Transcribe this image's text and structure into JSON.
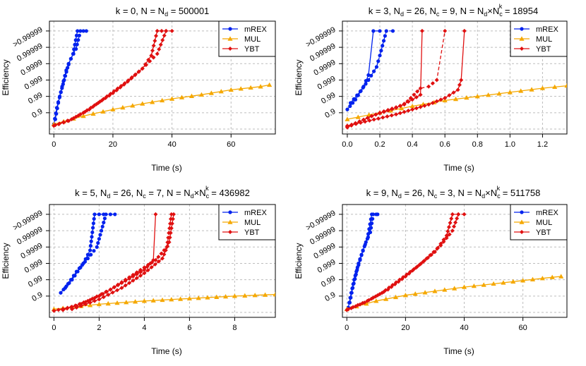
{
  "colors": {
    "mrex": "#0022ee",
    "mul": "#f5a800",
    "ybt": "#e01010",
    "grid": "#bdbdbd"
  },
  "chart_data": [
    {
      "type": "line",
      "title": {
        "parts": [
          "k = 0, N = N",
          "d",
          " = 500001"
        ]
      },
      "xlabel": "Time (s)",
      "ylabel": "Efficiency",
      "xlim": [
        -1.5,
        75
      ],
      "xticks": [
        0,
        20,
        40,
        60
      ],
      "xtick_labels": [
        "0",
        "20",
        "40",
        "60"
      ],
      "ylim": [
        -0.3,
        6.6
      ],
      "yticks": [
        1,
        2,
        3,
        4,
        5,
        6
      ],
      "ytick_labels": [
        "0.9",
        "0.99",
        "0.999",
        "0.9999",
        "0.99999",
        ">0.99999"
      ],
      "y_scale_note": "y position = number of nines in efficiency",
      "legend": [
        "mREX",
        "MUL",
        "YBT"
      ],
      "series": [
        {
          "name": "mREX",
          "lines": [
            [
              [
                0,
                0.3
              ],
              [
                1,
                1.3
              ],
              [
                2,
                2.0
              ],
              [
                3.5,
                3.0
              ],
              [
                5,
                4.0
              ],
              [
                6.5,
                4.6
              ],
              [
                8,
                6.0
              ],
              [
                10,
                6.0
              ]
            ],
            [
              [
                0.5,
                0.6
              ],
              [
                1.5,
                1.6
              ],
              [
                2.8,
                2.6
              ],
              [
                4.2,
                3.6
              ],
              [
                5.8,
                4.3
              ],
              [
                7.5,
                4.9
              ],
              [
                9,
                6.0
              ],
              [
                11,
                6.0
              ]
            ]
          ]
        },
        {
          "name": "MUL",
          "lines": [
            [
              [
                0,
                0.3
              ],
              [
                10,
                0.8
              ],
              [
                20,
                1.2
              ],
              [
                30,
                1.55
              ],
              [
                40,
                1.85
              ],
              [
                50,
                2.1
              ],
              [
                60,
                2.4
              ],
              [
                70,
                2.6
              ],
              [
                73,
                2.7
              ]
            ]
          ]
        },
        {
          "name": "YBT",
          "lines": [
            [
              [
                0,
                0.2
              ],
              [
                5,
                0.5
              ],
              [
                10,
                1.0
              ],
              [
                15,
                1.6
              ],
              [
                20,
                2.2
              ],
              [
                25,
                2.9
              ],
              [
                30,
                3.7
              ],
              [
                33,
                4.5
              ],
              [
                35,
                6.0
              ],
              [
                38,
                6.0
              ]
            ],
            [
              [
                0.5,
                0.25
              ],
              [
                6,
                0.6
              ],
              [
                12,
                1.2
              ],
              [
                18,
                2.0
              ],
              [
                24,
                2.8
              ],
              [
                30,
                3.7
              ],
              [
                35,
                4.6
              ],
              [
                38,
                6.0
              ],
              [
                40,
                6.0
              ]
            ]
          ]
        }
      ]
    },
    {
      "type": "line",
      "title": {
        "parts": [
          "k = 3, N",
          "d",
          " = 26, N",
          "c",
          " = 9, N = N",
          "d",
          "×N",
          "c",
          "k",
          " = 18954"
        ]
      },
      "xlabel": "Time (s)",
      "ylabel": "Efficiency",
      "xlim": [
        -0.03,
        1.35
      ],
      "xticks": [
        0,
        0.2,
        0.4,
        0.6,
        0.8,
        1.0,
        1.2
      ],
      "xtick_labels": [
        "0.0",
        "0.2",
        "0.4",
        "0.6",
        "0.8",
        "1.0",
        "1.2"
      ],
      "ylim": [
        -0.3,
        6.6
      ],
      "yticks": [
        1,
        2,
        3,
        4,
        5,
        6
      ],
      "ytick_labels": [
        "0.9",
        "0.99",
        "0.999",
        "0.9999",
        "0.99999",
        ">0.99999"
      ],
      "y_scale_note": "y position = number of nines in efficiency",
      "legend": [
        "mREX",
        "MUL",
        "YBT"
      ],
      "series": [
        {
          "name": "mREX",
          "lines": [
            [
              [
                0,
                1.2
              ],
              [
                0.05,
                1.8
              ],
              [
                0.1,
                2.6
              ],
              [
                0.13,
                3.3
              ],
              [
                0.16,
                6.0
              ],
              [
                0.2,
                6.0
              ]
            ],
            [
              [
                0.02,
                1.6
              ],
              [
                0.08,
                2.3
              ],
              [
                0.13,
                3.0
              ],
              [
                0.18,
                3.8
              ],
              [
                0.2,
                4.5
              ],
              [
                0.24,
                6.0
              ],
              [
                0.28,
                6.0
              ]
            ]
          ]
        },
        {
          "name": "MUL",
          "lines": [
            [
              [
                0,
                0.6
              ],
              [
                0.2,
                1.0
              ],
              [
                0.4,
                1.4
              ],
              [
                0.6,
                1.75
              ],
              [
                0.8,
                2.0
              ],
              [
                1.0,
                2.25
              ],
              [
                1.2,
                2.5
              ],
              [
                1.35,
                2.65
              ]
            ]
          ]
        },
        {
          "name": "YBT",
          "lines": [
            [
              [
                0,
                0.1
              ],
              [
                0.15,
                0.8
              ],
              [
                0.3,
                1.3
              ],
              [
                0.4,
                1.8
              ],
              [
                0.45,
                2.1
              ],
              [
                0.46,
                6.0
              ]
            ],
            [
              [
                0,
                0.15
              ],
              [
                0.2,
                1.0
              ],
              [
                0.35,
                1.5
              ],
              [
                0.45,
                2.5
              ],
              [
                0.5,
                2.6
              ],
              [
                0.55,
                3.0
              ],
              [
                0.6,
                6.0
              ]
            ],
            [
              [
                0,
                0.2
              ],
              [
                0.3,
                0.9
              ],
              [
                0.5,
                1.5
              ],
              [
                0.6,
                1.9
              ],
              [
                0.68,
                2.4
              ],
              [
                0.7,
                3.0
              ],
              [
                0.72,
                6.0
              ]
            ]
          ]
        }
      ]
    },
    {
      "type": "line",
      "title": {
        "parts": [
          "k = 5, N",
          "d",
          " = 26, N",
          "c",
          " = 7, N = N",
          "d",
          "×N",
          "c",
          "k",
          " = 436982"
        ]
      },
      "xlabel": "Time (s)",
      "ylabel": "Efficiency",
      "xlim": [
        -0.2,
        9.8
      ],
      "xticks": [
        0,
        2,
        4,
        6,
        8
      ],
      "xtick_labels": [
        "0",
        "2",
        "4",
        "6",
        "8"
      ],
      "ylim": [
        -0.3,
        6.6
      ],
      "yticks": [
        1,
        2,
        3,
        4,
        5,
        6
      ],
      "ytick_labels": [
        "0.9",
        "0.99",
        "0.999",
        "0.9999",
        "0.99999",
        ">0.99999"
      ],
      "y_scale_note": "y position = number of nines in efficiency",
      "legend": [
        "mREX",
        "MUL",
        "YBT"
      ],
      "series": [
        {
          "name": "mREX",
          "lines": [
            [
              [
                0.3,
                1.2
              ],
              [
                0.8,
                2.0
              ],
              [
                1.3,
                3.0
              ],
              [
                1.6,
                3.8
              ],
              [
                1.8,
                6.0
              ],
              [
                2.2,
                6.0
              ]
            ],
            [
              [
                0.5,
                1.5
              ],
              [
                1.0,
                2.5
              ],
              [
                1.5,
                3.3
              ],
              [
                1.9,
                4.0
              ],
              [
                2.3,
                6.0
              ],
              [
                2.7,
                6.0
              ]
            ]
          ]
        },
        {
          "name": "MUL",
          "lines": [
            [
              [
                0,
                0.2
              ],
              [
                2,
                0.5
              ],
              [
                4,
                0.7
              ],
              [
                6,
                0.85
              ],
              [
                8,
                1.0
              ],
              [
                9.8,
                1.1
              ]
            ]
          ]
        },
        {
          "name": "YBT",
          "lines": [
            [
              [
                0,
                0.1
              ],
              [
                1,
                0.4
              ],
              [
                2,
                1.0
              ],
              [
                3,
                1.8
              ],
              [
                4,
                2.6
              ],
              [
                4.4,
                3.2
              ],
              [
                4.5,
                6.0
              ]
            ],
            [
              [
                0.4,
                0.15
              ],
              [
                1.5,
                0.7
              ],
              [
                2.5,
                1.4
              ],
              [
                3.5,
                2.3
              ],
              [
                4.5,
                3.2
              ],
              [
                5,
                4.0
              ],
              [
                5.2,
                6.0
              ]
            ],
            [
              [
                0.8,
                0.2
              ],
              [
                2,
                0.8
              ],
              [
                3,
                1.5
              ],
              [
                4,
                2.4
              ],
              [
                4.8,
                3.3
              ],
              [
                5.1,
                4.3
              ],
              [
                5.3,
                6.0
              ]
            ]
          ]
        }
      ]
    },
    {
      "type": "line",
      "title": {
        "parts": [
          "k = 9, N",
          "d",
          " = 26, N",
          "c",
          " = 3, N = N",
          "d",
          "×N",
          "c",
          "k",
          " = 511758"
        ]
      },
      "xlabel": "Time (s)",
      "ylabel": "Efficiency",
      "xlim": [
        -1.5,
        75
      ],
      "xticks": [
        0,
        20,
        40,
        60
      ],
      "xtick_labels": [
        "0",
        "20",
        "40",
        "60"
      ],
      "ylim": [
        -0.3,
        6.6
      ],
      "yticks": [
        1,
        2,
        3,
        4,
        5,
        6
      ],
      "ytick_labels": [
        "0.9",
        "0.99",
        "0.999",
        "0.9999",
        "0.99999",
        ">0.99999"
      ],
      "y_scale_note": "y position = number of nines in efficiency",
      "legend": [
        "mREX",
        "MUL",
        "YBT"
      ],
      "series": [
        {
          "name": "mREX",
          "lines": [
            [
              [
                0.5,
                0.3
              ],
              [
                1.5,
                1.2
              ],
              [
                2.5,
                2.0
              ],
              [
                4,
                3.0
              ],
              [
                5.5,
                3.8
              ],
              [
                7,
                4.5
              ],
              [
                8.5,
                6.0
              ],
              [
                10,
                6.0
              ]
            ],
            [
              [
                1,
                0.6
              ],
              [
                2,
                1.5
              ],
              [
                3.5,
                2.6
              ],
              [
                5,
                3.5
              ],
              [
                6.5,
                4.3
              ],
              [
                8,
                4.9
              ],
              [
                9,
                6.0
              ],
              [
                10.5,
                6.0
              ]
            ]
          ]
        },
        {
          "name": "MUL",
          "lines": [
            [
              [
                0,
                0.2
              ],
              [
                10,
                0.7
              ],
              [
                20,
                1.05
              ],
              [
                30,
                1.3
              ],
              [
                40,
                1.55
              ],
              [
                50,
                1.75
              ],
              [
                60,
                1.95
              ],
              [
                70,
                2.15
              ],
              [
                73,
                2.2
              ]
            ]
          ]
        },
        {
          "name": "YBT",
          "lines": [
            [
              [
                0,
                0.15
              ],
              [
                6,
                0.6
              ],
              [
                12,
                1.2
              ],
              [
                18,
                2.0
              ],
              [
                24,
                2.8
              ],
              [
                30,
                3.7
              ],
              [
                34,
                4.7
              ],
              [
                36,
                6.0
              ],
              [
                38,
                6.0
              ]
            ],
            [
              [
                0.5,
                0.2
              ],
              [
                7,
                0.7
              ],
              [
                14,
                1.4
              ],
              [
                20,
                2.2
              ],
              [
                26,
                3.1
              ],
              [
                32,
                4.1
              ],
              [
                36,
                5.0
              ],
              [
                38,
                6.0
              ],
              [
                40,
                6.0
              ]
            ]
          ]
        }
      ]
    }
  ]
}
